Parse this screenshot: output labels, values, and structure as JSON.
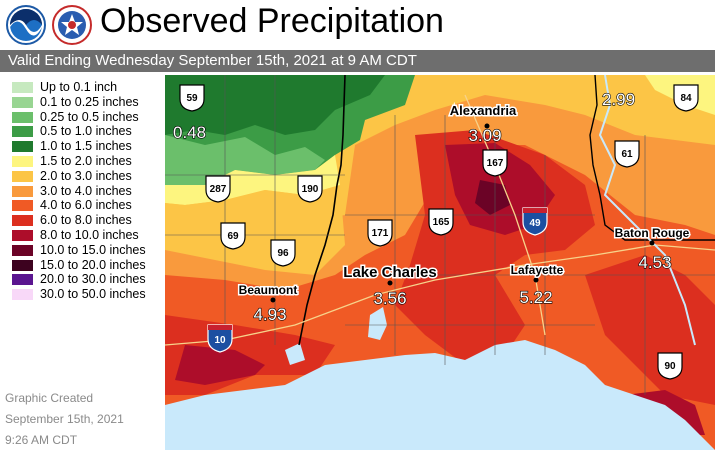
{
  "header": {
    "title": "Observed Precipitation",
    "subtitle": "Valid Ending Wednesday September 15th, 2021 at 9 AM CDT"
  },
  "legend": [
    {
      "label": "Up to 0.1 inch",
      "color": "#c6e9bf"
    },
    {
      "label": "0.1 to 0.25 inches",
      "color": "#98d592"
    },
    {
      "label": "0.25 to 0.5 inches",
      "color": "#6bbf6b"
    },
    {
      "label": "0.5 to 1.0 inches",
      "color": "#3c9c46"
    },
    {
      "label": "1.0 to 1.5 inches",
      "color": "#1f7a2e"
    },
    {
      "label": "1.5 to 2.0 inches",
      "color": "#fdf57f"
    },
    {
      "label": "2.0 to 3.0 inches",
      "color": "#fcc546"
    },
    {
      "label": "3.0 to 4.0 inches",
      "color": "#f99a3d"
    },
    {
      "label": "4.0 to 6.0 inches",
      "color": "#f05a25"
    },
    {
      "label": "6.0 to 8.0 inches",
      "color": "#dc2f1f"
    },
    {
      "label": "8.0 to 10.0 inches",
      "color": "#ad0d2a"
    },
    {
      "label": "10.0 to 15.0 inches",
      "color": "#6b0326"
    },
    {
      "label": "15.0 to 20.0 inches",
      "color": "#3d021f"
    },
    {
      "label": "20.0 to 30.0 inches",
      "color": "#5b1590"
    },
    {
      "label": "30.0 to 50.0 inches",
      "color": "#f8d8f8"
    }
  ],
  "created": {
    "line1": "Graphic Created",
    "line2": "September 15th, 2021",
    "line3": "9:26 AM CDT"
  },
  "map": {
    "cities": [
      {
        "name": "Alexandria",
        "amount": "3.09"
      },
      {
        "name": "Lake Charles",
        "amount": "3.56"
      },
      {
        "name": "Lafayette",
        "amount": "5.22"
      },
      {
        "name": "Baton Rouge",
        "amount": "4.53"
      },
      {
        "name": "Beaumont",
        "amount": "4.93"
      }
    ],
    "point_amounts": [
      "0.48",
      "2.99"
    ],
    "highway_shields": [
      "59",
      "84",
      "61",
      "287",
      "190",
      "167",
      "69",
      "96",
      "171",
      "165",
      "90"
    ],
    "interstate_shields": [
      "49",
      "10"
    ],
    "colors": {
      "water": "#c9e9fb",
      "shield_blue": "#1c4fa1",
      "shield_red": "#c8202f"
    }
  }
}
